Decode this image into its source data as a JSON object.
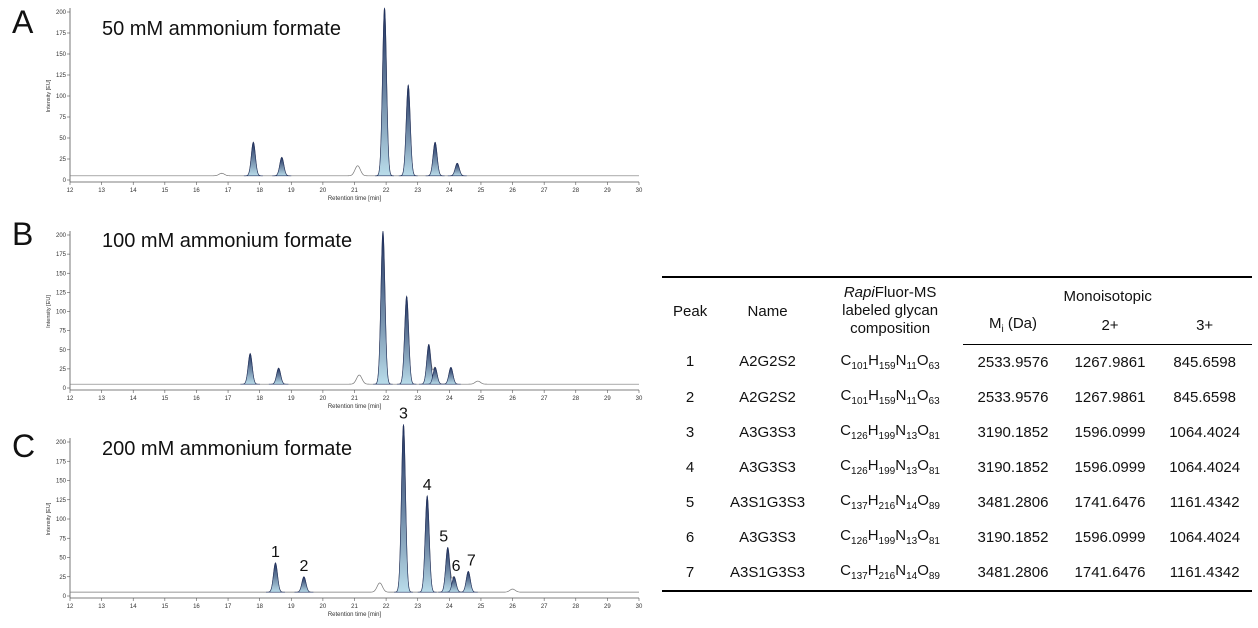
{
  "panels": [
    {
      "letter": "A",
      "title": "50 mM ammonium formate",
      "ylabel": "Intensity [EU]",
      "xlabel": "Retention time [min]",
      "yticks": [
        0,
        25,
        50,
        75,
        100,
        125,
        150,
        175,
        200
      ],
      "xticks": [
        12,
        13,
        14,
        15,
        16,
        17,
        18,
        19,
        20,
        21,
        22,
        23,
        24,
        25,
        26,
        27,
        28,
        29,
        30
      ],
      "peak_labels": []
    },
    {
      "letter": "B",
      "title": "100 mM ammonium formate",
      "ylabel": "Intensity [EU]",
      "xlabel": "Retention time [min]",
      "yticks": [
        0,
        25,
        50,
        75,
        100,
        125,
        150,
        175,
        200
      ],
      "xticks": [
        12,
        13,
        14,
        15,
        16,
        17,
        18,
        19,
        20,
        21,
        22,
        23,
        24,
        25,
        26,
        27,
        28,
        29,
        30
      ],
      "peak_labels": []
    },
    {
      "letter": "C",
      "title": "200 mM ammonium formate",
      "ylabel": "Intensity [EU]",
      "xlabel": "Retention time [min]",
      "yticks": [
        0,
        25,
        50,
        75,
        100,
        125,
        150,
        175,
        200
      ],
      "xticks": [
        12,
        13,
        14,
        15,
        16,
        17,
        18,
        19,
        20,
        21,
        22,
        23,
        24,
        25,
        26,
        27,
        28,
        29,
        30
      ],
      "peak_labels": [
        "1",
        "2",
        "3",
        "4",
        "5",
        "6",
        "7"
      ]
    }
  ],
  "table": {
    "headers": {
      "peak": "Peak",
      "name": "Name",
      "comp_italic": "Rapi",
      "comp_rest": "Fluor-MS",
      "comp_line2": "labeled glycan",
      "comp_line3": "composition",
      "mono": "Monoisotopic",
      "mi": "M",
      "mi_sub": "i",
      "mi_unit": " (Da)",
      "z2": "2+",
      "z3": "3+"
    },
    "rows": [
      {
        "peak": "1",
        "name": "A2G2S2",
        "formula": [
          [
            "C",
            "101"
          ],
          [
            "H",
            "159"
          ],
          [
            "N",
            "11"
          ],
          [
            "O",
            "63"
          ]
        ],
        "mi": "2533.9576",
        "z2": "1267.9861",
        "z3": "845.6598"
      },
      {
        "peak": "2",
        "name": "A2G2S2",
        "formula": [
          [
            "C",
            "101"
          ],
          [
            "H",
            "159"
          ],
          [
            "N",
            "11"
          ],
          [
            "O",
            "63"
          ]
        ],
        "mi": "2533.9576",
        "z2": "1267.9861",
        "z3": "845.6598"
      },
      {
        "peak": "3",
        "name": "A3G3S3",
        "formula": [
          [
            "C",
            "126"
          ],
          [
            "H",
            "199"
          ],
          [
            "N",
            "13"
          ],
          [
            "O",
            "81"
          ]
        ],
        "mi": "3190.1852",
        "z2": "1596.0999",
        "z3": "1064.4024"
      },
      {
        "peak": "4",
        "name": "A3G3S3",
        "formula": [
          [
            "C",
            "126"
          ],
          [
            "H",
            "199"
          ],
          [
            "N",
            "13"
          ],
          [
            "O",
            "81"
          ]
        ],
        "mi": "3190.1852",
        "z2": "1596.0999",
        "z3": "1064.4024"
      },
      {
        "peak": "5",
        "name": "A3S1G3S3",
        "formula": [
          [
            "C",
            "137"
          ],
          [
            "H",
            "216"
          ],
          [
            "N",
            "14"
          ],
          [
            "O",
            "89"
          ]
        ],
        "mi": "3481.2806",
        "z2": "1741.6476",
        "z3": "1161.4342"
      },
      {
        "peak": "6",
        "name": "A3G3S3",
        "formula": [
          [
            "C",
            "126"
          ],
          [
            "H",
            "199"
          ],
          [
            "N",
            "13"
          ],
          [
            "O",
            "81"
          ]
        ],
        "mi": "3190.1852",
        "z2": "1596.0999",
        "z3": "1064.4024"
      },
      {
        "peak": "7",
        "name": "A3S1G3S3",
        "formula": [
          [
            "C",
            "137"
          ],
          [
            "H",
            "216"
          ],
          [
            "N",
            "14"
          ],
          [
            "O",
            "89"
          ]
        ],
        "mi": "3481.2806",
        "z2": "1741.6476",
        "z3": "1161.4342"
      }
    ]
  },
  "colors": {
    "peak_dark": "#1f2f5c",
    "peak_light": "#b9dcea",
    "baseline": "#777777",
    "axis": "#555555"
  },
  "chart_data": [
    {
      "type": "line",
      "title": "50 mM ammonium formate",
      "xlabel": "Retention time [min]",
      "ylabel": "Intensity [EU]",
      "xlim": [
        12,
        30
      ],
      "ylim": [
        0,
        200
      ],
      "baseline": 5,
      "peaks": [
        {
          "x": 16.8,
          "y": 3,
          "filled": false
        },
        {
          "x": 17.8,
          "y": 40,
          "filled": true
        },
        {
          "x": 18.7,
          "y": 22,
          "filled": true
        },
        {
          "x": 21.1,
          "y": 12,
          "filled": false
        },
        {
          "x": 21.95,
          "y": 200,
          "filled": true
        },
        {
          "x": 22.7,
          "y": 108,
          "filled": true
        },
        {
          "x": 23.55,
          "y": 40,
          "filled": true
        },
        {
          "x": 24.25,
          "y": 15,
          "filled": true
        }
      ]
    },
    {
      "type": "line",
      "title": "100 mM ammonium formate",
      "xlabel": "Retention time [min]",
      "ylabel": "Intensity [EU]",
      "xlim": [
        12,
        30
      ],
      "ylim": [
        0,
        200
      ],
      "baseline": 5,
      "peaks": [
        {
          "x": 17.7,
          "y": 40,
          "filled": true
        },
        {
          "x": 18.6,
          "y": 21,
          "filled": true
        },
        {
          "x": 21.15,
          "y": 12,
          "filled": false
        },
        {
          "x": 21.9,
          "y": 200,
          "filled": true
        },
        {
          "x": 22.65,
          "y": 115,
          "filled": true
        },
        {
          "x": 23.35,
          "y": 52,
          "filled": true
        },
        {
          "x": 23.55,
          "y": 22,
          "filled": true
        },
        {
          "x": 24.05,
          "y": 22,
          "filled": true
        },
        {
          "x": 24.9,
          "y": 4,
          "filled": false
        }
      ]
    },
    {
      "type": "line",
      "title": "200 mM ammonium formate",
      "xlabel": "Retention time [min]",
      "ylabel": "Intensity [EU]",
      "xlim": [
        12,
        30
      ],
      "ylim": [
        0,
        200
      ],
      "baseline": 5,
      "peaks": [
        {
          "x": 18.5,
          "y": 38,
          "filled": true,
          "label": "1"
        },
        {
          "x": 19.4,
          "y": 20,
          "filled": true,
          "label": "2"
        },
        {
          "x": 21.8,
          "y": 12,
          "filled": false
        },
        {
          "x": 22.55,
          "y": 218,
          "filled": true,
          "label": "3"
        },
        {
          "x": 23.3,
          "y": 125,
          "filled": true,
          "label": "4"
        },
        {
          "x": 23.95,
          "y": 58,
          "filled": true,
          "label": "5"
        },
        {
          "x": 24.15,
          "y": 20,
          "filled": true,
          "label": "6"
        },
        {
          "x": 24.6,
          "y": 27,
          "filled": true,
          "label": "7"
        },
        {
          "x": 26.0,
          "y": 4,
          "filled": false
        }
      ]
    }
  ]
}
